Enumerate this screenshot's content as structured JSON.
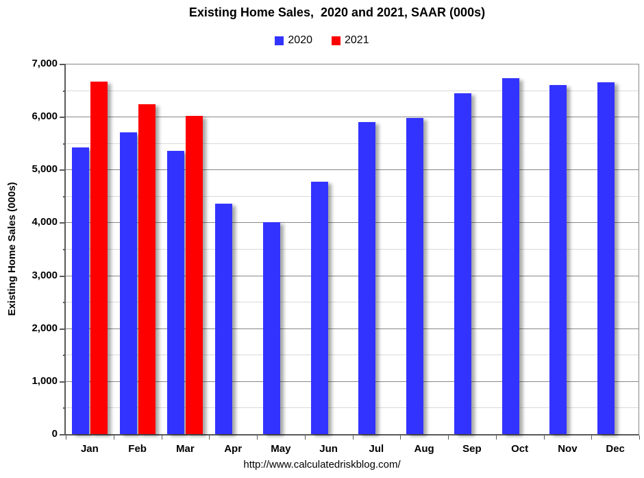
{
  "title": "Existing Home Sales,  2020 and 2021, SAAR (000s)",
  "legend": {
    "items": [
      {
        "label": "2020",
        "color": "#3333ff"
      },
      {
        "label": "2021",
        "color": "#ff0000"
      }
    ]
  },
  "footer": {
    "url": "http://www.calculatedriskblog.com/"
  },
  "colors": {
    "series_2020": "#3333ff",
    "series_2021": "#ff0000",
    "major_gridline": "#878787",
    "minor_gridline": "#d9d9d9",
    "axis_line": "#595959"
  },
  "chart_data": {
    "type": "bar",
    "title": "Existing Home Sales,  2020 and 2021, SAAR (000s)",
    "categories": [
      "Jan",
      "Feb",
      "Mar",
      "Apr",
      "May",
      "Jun",
      "Jul",
      "Aug",
      "Sep",
      "Oct",
      "Nov",
      "Dec"
    ],
    "series": [
      {
        "name": "2020",
        "color": "#3333ff",
        "values": [
          5420,
          5700,
          5350,
          4360,
          4010,
          4770,
          5900,
          5970,
          6440,
          6730,
          6600,
          6650
        ]
      },
      {
        "name": "2021",
        "color": "#ff0000",
        "values": [
          6660,
          6240,
          6010,
          null,
          null,
          null,
          null,
          null,
          null,
          null,
          null,
          null
        ]
      }
    ],
    "xlabel": "",
    "ylabel": "Existing Home Sales (000s)",
    "ylim": [
      0,
      7000
    ],
    "y_major_step": 1000,
    "y_minor_step": 500,
    "y_tick_labels": [
      "0",
      "1,000",
      "2,000",
      "3,000",
      "4,000",
      "5,000",
      "6,000",
      "7,000"
    ],
    "grid": true,
    "legend_position": "top"
  }
}
